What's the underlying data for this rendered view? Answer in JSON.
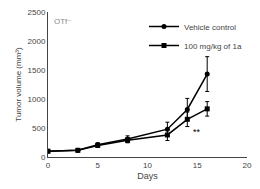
{
  "chart_data": {
    "type": "line",
    "xlabel": "Days",
    "ylabel": "Tumor volume (mm³)",
    "x": [
      0,
      3,
      5,
      8,
      12,
      14,
      16
    ],
    "series": [
      {
        "name": "Vehicle control",
        "color": "#000000",
        "marker": "circle",
        "values": [
          100,
          115,
          210,
          310,
          480,
          820,
          1430
        ],
        "errors": [
          15,
          25,
          35,
          55,
          120,
          190,
          300
        ]
      },
      {
        "name": "100 mg/kg of 1a",
        "color": "#000000",
        "marker": "square",
        "values": [
          100,
          115,
          200,
          290,
          380,
          650,
          830
        ],
        "errors": [
          15,
          18,
          28,
          45,
          95,
          125,
          125
        ]
      }
    ],
    "xlim": [
      0,
      20
    ],
    "xticks": [
      0,
      5,
      10,
      15,
      20
    ],
    "ylim": [
      0,
      2500
    ],
    "yticks": [
      0,
      500,
      1000,
      1500,
      2000,
      2500
    ],
    "grid": false,
    "legend": "upper right",
    "annotations": [
      {
        "text": "**",
        "x": 15.0,
        "y": 560
      },
      {
        "text": "OTf⁻"
      }
    ]
  }
}
